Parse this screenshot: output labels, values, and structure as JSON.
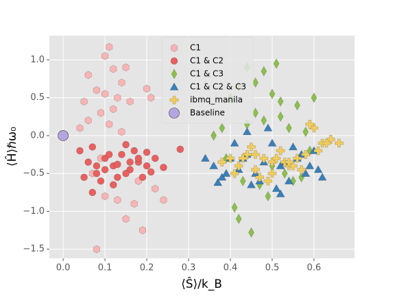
{
  "chart_data": {
    "type": "scatter",
    "xlabel": "⟨Ŝ⟩/k_B",
    "ylabel": "⟨Ĥ⟩ℏω₀",
    "xlim": [
      -0.033,
      0.697
    ],
    "ylim": [
      -1.62,
      1.32
    ],
    "xticks": [
      {
        "value": 0,
        "label": "0.0"
      },
      0.1,
      0.2,
      0.3,
      0.4,
      0.5,
      0.6
    ],
    "yticks": [
      {
        "value": -1.5,
        "label": "−1.5"
      },
      {
        "value": -1.0,
        "label": "−1.0"
      },
      {
        "value": -0.5,
        "label": "−0.5"
      },
      {
        "value": 0,
        "label": "0.0"
      },
      0.5,
      {
        "value": 1.0,
        "label": "1.0"
      }
    ],
    "grid": true,
    "legend": "upper center",
    "series": [
      {
        "name": "C1",
        "color": "#f9b4b4",
        "marker": "hexagon",
        "x": [
          0.05,
          0.08,
          0.1,
          0.12,
          0.14,
          0.06,
          0.09,
          0.11,
          0.13,
          0.16,
          0.18,
          0.2,
          0.04,
          0.07,
          0.1,
          0.15,
          0.17,
          0.21,
          0.22,
          0.24,
          0.11,
          0.13,
          0.08,
          0.19,
          0.15,
          0.06,
          0.12,
          0.14,
          0.1,
          0.09
        ],
        "y": [
          0.45,
          0.6,
          1.05,
          0.88,
          0.7,
          0.8,
          0.3,
          0.15,
          0.5,
          0.45,
          -0.6,
          0.62,
          0.1,
          -0.5,
          -0.8,
          -1.1,
          -0.9,
          0.5,
          -0.7,
          -0.85,
          1.17,
          -0.85,
          -1.5,
          -1.25,
          0.9,
          0.2,
          0.35,
          0.05,
          0.55,
          -0.3
        ]
      },
      {
        "name": "C1 & C2",
        "color": "#e8605f",
        "marker": "circle",
        "x": [
          0.04,
          0.06,
          0.08,
          0.1,
          0.12,
          0.14,
          0.16,
          0.18,
          0.2,
          0.22,
          0.24,
          0.05,
          0.07,
          0.09,
          0.11,
          0.13,
          0.15,
          0.17,
          0.19,
          0.21,
          0.28,
          0.07,
          0.12,
          0.15,
          0.1,
          0.18,
          0.08,
          0.13,
          0.16,
          0.2
        ],
        "y": [
          -0.2,
          -0.35,
          -0.5,
          -0.3,
          -0.4,
          -0.25,
          -0.45,
          -0.35,
          -0.4,
          -0.3,
          -0.42,
          -0.55,
          -0.15,
          -0.6,
          -0.25,
          -0.38,
          -0.5,
          -0.2,
          -0.55,
          -0.48,
          -0.18,
          -0.75,
          -0.65,
          -0.12,
          -0.45,
          -0.3,
          -0.4,
          -0.55,
          -0.35,
          -0.22
        ]
      },
      {
        "name": "C1 & C3",
        "color": "#8cbf4c",
        "marker": "diamond",
        "x": [
          0.38,
          0.4,
          0.42,
          0.44,
          0.46,
          0.48,
          0.5,
          0.52,
          0.54,
          0.56,
          0.58,
          0.6,
          0.41,
          0.45,
          0.49,
          0.43,
          0.47,
          0.51,
          0.53,
          0.55,
          0.39,
          0.44,
          0.46,
          0.57,
          0.52,
          0.48,
          0.42,
          0.5,
          0.36,
          0.59
        ],
        "y": [
          0.1,
          0.5,
          0.65,
          0.9,
          0.3,
          0.2,
          0.55,
          0.45,
          0.1,
          0.4,
          0.05,
          0.5,
          -0.95,
          -1.28,
          -0.8,
          -0.6,
          -0.65,
          0.95,
          -0.5,
          -0.6,
          -0.3,
          0.15,
          0.7,
          -0.55,
          0.25,
          0.85,
          -1.1,
          -0.4,
          0.0,
          -0.2
        ]
      },
      {
        "name": "C1 & C2 & C3",
        "color": "#3a7fb8",
        "marker": "triangle",
        "x": [
          0.34,
          0.36,
          0.38,
          0.4,
          0.42,
          0.44,
          0.46,
          0.48,
          0.5,
          0.52,
          0.54,
          0.56,
          0.58,
          0.6,
          0.62,
          0.37,
          0.41,
          0.45,
          0.49,
          0.53,
          0.57,
          0.61,
          0.43,
          0.47,
          0.51,
          0.55,
          0.59,
          0.39,
          0.44,
          0.52
        ],
        "y": [
          -0.3,
          -0.4,
          -0.55,
          -0.3,
          -0.45,
          -0.25,
          -0.5,
          -0.35,
          -0.1,
          -0.4,
          -0.6,
          -0.3,
          -0.5,
          -0.2,
          -0.55,
          -0.62,
          -0.1,
          -0.65,
          0.1,
          -0.35,
          -0.25,
          -0.45,
          -0.3,
          -0.6,
          -0.7,
          -0.15,
          -0.4,
          -0.5,
          0.05,
          -0.77
        ]
      },
      {
        "name": "ibmq_manila",
        "color": "#f2cd5c",
        "marker": "plus",
        "x": [
          0.38,
          0.4,
          0.42,
          0.44,
          0.46,
          0.48,
          0.5,
          0.52,
          0.54,
          0.56,
          0.58,
          0.6,
          0.62,
          0.64,
          0.66,
          0.41,
          0.45,
          0.49,
          0.53,
          0.57,
          0.61,
          0.43,
          0.47,
          0.51,
          0.55,
          0.59,
          0.63,
          0.46,
          0.5,
          0.54
        ],
        "y": [
          -0.35,
          -0.3,
          -0.4,
          -0.25,
          -0.45,
          -0.3,
          -0.35,
          -0.2,
          -0.4,
          -0.3,
          -0.25,
          0.1,
          -0.1,
          -0.05,
          -0.1,
          -0.5,
          -0.15,
          -0.6,
          -0.35,
          -0.45,
          -0.2,
          -0.3,
          -0.55,
          -0.3,
          -0.4,
          0.15,
          -0.1,
          -0.25,
          -0.5,
          -0.35
        ]
      },
      {
        "name": "Baseline",
        "color": "#b3a6e0",
        "marker": "bigcircle",
        "x": [
          0
        ],
        "y": [
          0
        ]
      }
    ]
  }
}
